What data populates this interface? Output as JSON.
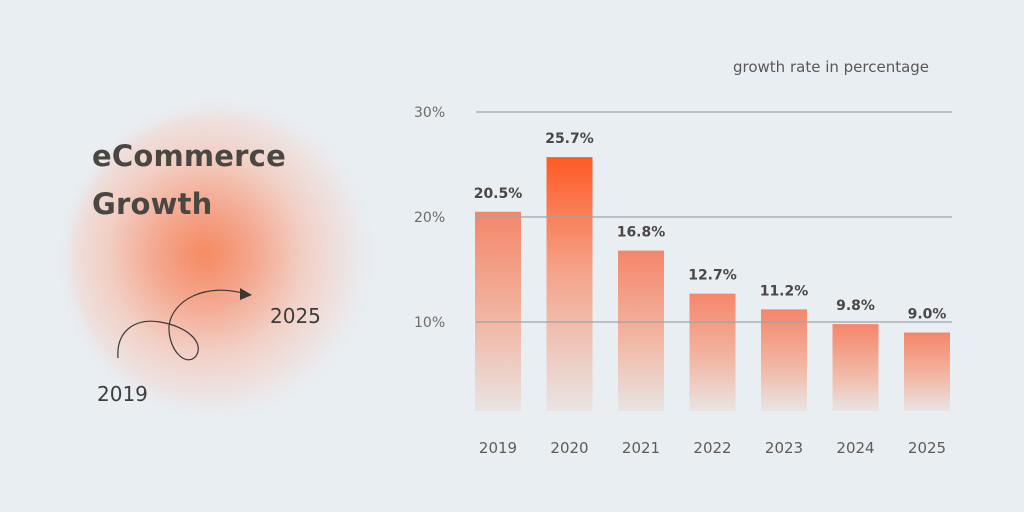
{
  "headline": {
    "line1": "eCommerce",
    "line2": "Growth"
  },
  "journey": {
    "start_year": "2019",
    "end_year": "2025"
  },
  "colors": {
    "background": "#e9eef3",
    "accent": "#fe5a24",
    "bar_top": "#f4866a",
    "bar_bottom": "#e9e4e3",
    "gridline": "#9ba3ab",
    "text": "#4a4742"
  },
  "chart_data": {
    "type": "bar",
    "title": "",
    "ylabel": "growth rate in percentage",
    "xlabel": "",
    "categories": [
      "2019",
      "2020",
      "2021",
      "2022",
      "2023",
      "2024",
      "2025"
    ],
    "values": [
      20.5,
      25.7,
      16.8,
      12.7,
      11.2,
      9.8,
      9.0
    ],
    "value_labels": [
      "20.5%",
      "25.7%",
      "16.8%",
      "12.7%",
      "11.2%",
      "9.8%",
      "9.0%"
    ],
    "highlight_category": "2020",
    "ylim": [
      0,
      30
    ],
    "y_ticks": [
      10,
      20,
      30
    ],
    "y_tick_labels": [
      "10%",
      "20%",
      "30%"
    ],
    "grid": true,
    "legend": "none"
  }
}
